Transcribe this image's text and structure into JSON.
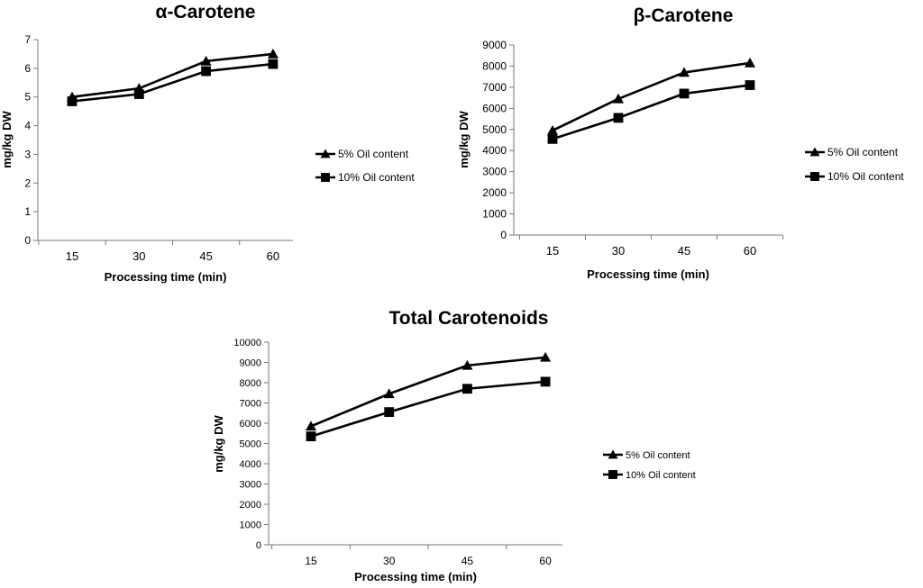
{
  "chart_data": [
    {
      "type": "line",
      "title": "α-Carotene",
      "xlabel": "Processing time (min)",
      "ylabel": "mg/kg DW",
      "categories": [
        "15",
        "30",
        "45",
        "60"
      ],
      "ylim": [
        0,
        7
      ],
      "yticks": [
        0,
        1,
        2,
        3,
        4,
        5,
        6,
        7
      ],
      "legend_position": "right",
      "series": [
        {
          "name": "5% Oil content",
          "marker": "triangle",
          "values": [
            5.0,
            5.3,
            6.25,
            6.5
          ]
        },
        {
          "name": "10% Oil content",
          "marker": "square",
          "values": [
            4.85,
            5.1,
            5.9,
            6.15
          ]
        }
      ]
    },
    {
      "type": "line",
      "title": "β-Carotene",
      "xlabel": "Processing time (min)",
      "ylabel": "mg/kg DW",
      "categories": [
        "15",
        "30",
        "45",
        "60"
      ],
      "ylim": [
        0,
        9000
      ],
      "yticks": [
        0,
        1000,
        2000,
        3000,
        4000,
        5000,
        6000,
        7000,
        8000,
        9000
      ],
      "legend_position": "right",
      "series": [
        {
          "name": "5% Oil content",
          "marker": "triangle",
          "values": [
            4950,
            6450,
            7700,
            8150
          ]
        },
        {
          "name": "10% Oil content",
          "marker": "square",
          "values": [
            4550,
            5550,
            6700,
            7100
          ]
        }
      ]
    },
    {
      "type": "line",
      "title": "Total Carotenoids",
      "xlabel": "Processing time (min)",
      "ylabel": "mg/kg DW",
      "categories": [
        "15",
        "30",
        "45",
        "60"
      ],
      "ylim": [
        0,
        10000
      ],
      "yticks": [
        0,
        1000,
        2000,
        3000,
        4000,
        5000,
        6000,
        7000,
        8000,
        9000,
        10000
      ],
      "legend_position": "right",
      "series": [
        {
          "name": "5% Oil content",
          "marker": "triangle",
          "values": [
            5850,
            7450,
            8850,
            9250
          ]
        },
        {
          "name": "10% Oil content",
          "marker": "square",
          "values": [
            5350,
            6550,
            7700,
            8050
          ]
        }
      ]
    }
  ]
}
